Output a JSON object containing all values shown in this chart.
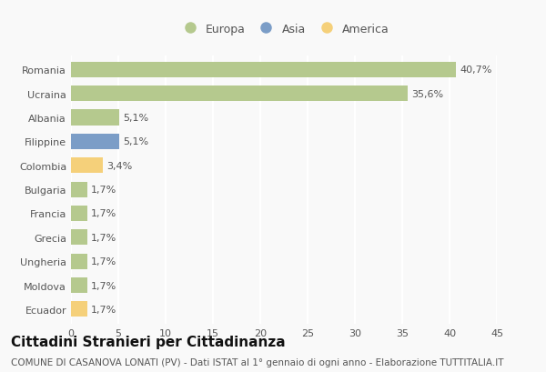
{
  "categories": [
    "Romania",
    "Ucraina",
    "Albania",
    "Filippine",
    "Colombia",
    "Bulgaria",
    "Francia",
    "Grecia",
    "Ungheria",
    "Moldova",
    "Ecuador"
  ],
  "values": [
    40.7,
    35.6,
    5.1,
    5.1,
    3.4,
    1.7,
    1.7,
    1.7,
    1.7,
    1.7,
    1.7
  ],
  "labels": [
    "40,7%",
    "35,6%",
    "5,1%",
    "5,1%",
    "3,4%",
    "1,7%",
    "1,7%",
    "1,7%",
    "1,7%",
    "1,7%",
    "1,7%"
  ],
  "colors": [
    "#b5c98e",
    "#b5c98e",
    "#b5c98e",
    "#7b9dc7",
    "#f5d07a",
    "#b5c98e",
    "#b5c98e",
    "#b5c98e",
    "#b5c98e",
    "#b5c98e",
    "#f5d07a"
  ],
  "legend": [
    {
      "label": "Europa",
      "color": "#b5c98e"
    },
    {
      "label": "Asia",
      "color": "#7b9dc7"
    },
    {
      "label": "America",
      "color": "#f5d07a"
    }
  ],
  "title": "Cittadini Stranieri per Cittadinanza",
  "subtitle": "COMUNE DI CASANOVA LONATI (PV) - Dati ISTAT al 1° gennaio di ogni anno - Elaborazione TUTTITALIA.IT",
  "xlim": [
    0,
    45
  ],
  "xticks": [
    0,
    5,
    10,
    15,
    20,
    25,
    30,
    35,
    40,
    45
  ],
  "background_color": "#f9f9f9",
  "grid_color": "#ffffff",
  "bar_height": 0.65,
  "title_fontsize": 11,
  "subtitle_fontsize": 7.5,
  "label_fontsize": 8,
  "tick_fontsize": 8,
  "legend_fontsize": 9
}
